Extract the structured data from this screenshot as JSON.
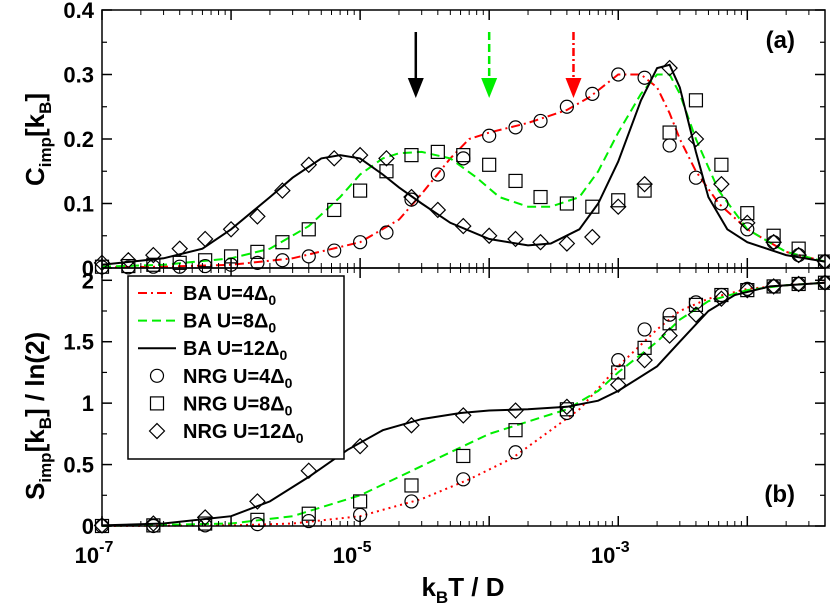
{
  "chart_data": [
    {
      "panel": "(a)",
      "type": "line",
      "xscale": "log",
      "xlim": [
        1e-07,
        0.04
      ],
      "ylim": [
        0,
        0.4
      ],
      "yticks": [
        "0",
        "0.1",
        "0.2",
        "0.3",
        "0.4"
      ],
      "ylabel": {
        "main": "C",
        "sub": "imp",
        "rest": "[k",
        "sub2": "B",
        "end": "]"
      },
      "arrows": [
        {
          "x": 2.7e-05,
          "color": "#000000",
          "style": "solid"
        },
        {
          "x": 0.0001,
          "color": "#00ee00",
          "style": "dashed"
        },
        {
          "x": 0.00045,
          "color": "#ff0000",
          "style": "dashdot"
        }
      ],
      "series": [
        {
          "name": "BA U=4Δ0",
          "kind": "line",
          "color": "#ff0000",
          "dash": "dashdot",
          "x": [
            1e-07,
            3e-07,
            1e-06,
            3e-06,
            1e-05,
            2e-05,
            3e-05,
            5e-05,
            7e-05,
            0.0001,
            0.0002,
            0.0004,
            0.0006,
            0.001,
            0.0015,
            0.002,
            0.0025,
            0.003,
            0.004,
            0.006,
            0.01,
            0.02,
            0.04
          ],
          "y": [
            0.001,
            0.002,
            0.005,
            0.015,
            0.04,
            0.075,
            0.115,
            0.17,
            0.2,
            0.21,
            0.225,
            0.245,
            0.265,
            0.3,
            0.3,
            0.28,
            0.24,
            0.2,
            0.15,
            0.1,
            0.06,
            0.025,
            0.01
          ]
        },
        {
          "name": "BA U=8Δ0",
          "kind": "line",
          "color": "#00ee00",
          "dash": "dashed",
          "x": [
            1e-07,
            3e-07,
            1e-06,
            2e-06,
            4e-06,
            7e-06,
            1e-05,
            1.5e-05,
            2e-05,
            3e-05,
            5e-05,
            8e-05,
            0.00012,
            0.0002,
            0.0003,
            0.0005,
            0.0007,
            0.001,
            0.0015,
            0.002,
            0.0025,
            0.003,
            0.004,
            0.006,
            0.01,
            0.02,
            0.04
          ],
          "y": [
            0.002,
            0.005,
            0.015,
            0.03,
            0.065,
            0.11,
            0.145,
            0.17,
            0.178,
            0.18,
            0.17,
            0.14,
            0.11,
            0.095,
            0.095,
            0.11,
            0.15,
            0.21,
            0.27,
            0.3,
            0.3,
            0.27,
            0.2,
            0.12,
            0.06,
            0.025,
            0.01
          ]
        },
        {
          "name": "BA U=12Δ0",
          "kind": "line",
          "color": "#000000",
          "dash": "solid",
          "x": [
            1e-07,
            3e-07,
            6e-07,
            1e-06,
            2e-06,
            3e-06,
            5e-06,
            7e-06,
            1e-05,
            1.5e-05,
            2e-05,
            3e-05,
            5e-05,
            0.0001,
            0.0002,
            0.0003,
            0.0005,
            0.0007,
            0.001,
            0.0015,
            0.002,
            0.0025,
            0.003,
            0.004,
            0.005,
            0.007,
            0.01,
            0.02,
            0.04
          ],
          "y": [
            0.005,
            0.015,
            0.03,
            0.06,
            0.11,
            0.14,
            0.17,
            0.175,
            0.17,
            0.145,
            0.125,
            0.1,
            0.07,
            0.045,
            0.035,
            0.038,
            0.06,
            0.1,
            0.165,
            0.26,
            0.31,
            0.315,
            0.28,
            0.18,
            0.11,
            0.06,
            0.04,
            0.02,
            0.01
          ]
        },
        {
          "name": "NRG U=4Δ0",
          "kind": "marker",
          "marker": "circle",
          "x": [
            1e-07,
            1.6e-07,
            2.5e-07,
            4e-07,
            6.3e-07,
            1e-06,
            1.6e-06,
            2.5e-06,
            4e-06,
            6.3e-06,
            1e-05,
            1.6e-05,
            2.5e-05,
            4e-05,
            6.3e-05,
            0.0001,
            0.00016,
            0.00025,
            0.0004,
            0.00063,
            0.001,
            0.0016,
            0.0025,
            0.004,
            0.0063,
            0.01,
            0.016,
            0.025,
            0.04
          ],
          "y": [
            0.001,
            0.001,
            0.002,
            0.002,
            0.003,
            0.005,
            0.008,
            0.012,
            0.018,
            0.027,
            0.04,
            0.055,
            0.106,
            0.145,
            0.17,
            0.205,
            0.218,
            0.228,
            0.25,
            0.27,
            0.3,
            0.295,
            0.19,
            0.14,
            0.1,
            0.06,
            0.04,
            0.02,
            0.01
          ]
        },
        {
          "name": "NRG U=8Δ0",
          "kind": "marker",
          "marker": "square",
          "x": [
            1e-07,
            1.6e-07,
            2.5e-07,
            4e-07,
            6.3e-07,
            1e-06,
            1.6e-06,
            2.5e-06,
            4e-06,
            6.3e-06,
            1e-05,
            1.6e-05,
            2.5e-05,
            4e-05,
            6.3e-05,
            0.0001,
            0.00016,
            0.00025,
            0.0004,
            0.00063,
            0.001,
            0.0016,
            0.0025,
            0.004,
            0.0063,
            0.01,
            0.016,
            0.025,
            0.04
          ],
          "y": [
            0.002,
            0.003,
            0.005,
            0.008,
            0.012,
            0.018,
            0.025,
            0.04,
            0.06,
            0.09,
            0.12,
            0.15,
            0.175,
            0.18,
            0.175,
            0.16,
            0.135,
            0.11,
            0.1,
            0.095,
            0.105,
            0.12,
            0.21,
            0.26,
            0.16,
            0.085,
            0.05,
            0.03,
            0.01
          ]
        },
        {
          "name": "NRG U=12Δ0",
          "kind": "marker",
          "marker": "diamond",
          "x": [
            1e-07,
            1.6e-07,
            2.5e-07,
            4e-07,
            6.3e-07,
            1e-06,
            1.6e-06,
            2.5e-06,
            4e-06,
            6.3e-06,
            1e-05,
            1.6e-05,
            2.5e-05,
            4e-05,
            6.3e-05,
            0.0001,
            0.00016,
            0.00025,
            0.0004,
            0.00063,
            0.001,
            0.0016,
            0.0025,
            0.004,
            0.0063,
            0.01,
            0.016,
            0.025,
            0.04
          ],
          "y": [
            0.008,
            0.012,
            0.02,
            0.03,
            0.045,
            0.06,
            0.08,
            0.12,
            0.16,
            0.17,
            0.175,
            0.17,
            0.11,
            0.09,
            0.065,
            0.05,
            0.045,
            0.04,
            0.038,
            0.048,
            0.095,
            0.13,
            0.31,
            0.2,
            0.13,
            0.07,
            0.04,
            0.02,
            0.01
          ]
        }
      ]
    },
    {
      "panel": "(b)",
      "type": "line",
      "xscale": "log",
      "xlim": [
        1e-07,
        0.04
      ],
      "ylim": [
        0,
        2.1
      ],
      "yticks": [
        "0",
        "0.5",
        "1",
        "1.5",
        "2"
      ],
      "xticks": [
        {
          "base": "10",
          "exp": "-7"
        },
        {
          "base": "10",
          "exp": "-5"
        },
        {
          "base": "10",
          "exp": "-3"
        }
      ],
      "xlabel": {
        "a": "k",
        "sub": "B",
        "b": "T / D"
      },
      "ylabel": {
        "main": "S",
        "sub": "imp",
        "rest": "[k",
        "sub2": "B",
        "end": "] / ln(2)"
      },
      "series": [
        {
          "name": "BA U=4Δ0",
          "kind": "line",
          "color": "#ff0000",
          "dash": "dotted",
          "x": [
            1e-07,
            1e-06,
            3e-06,
            1e-05,
            3e-05,
            7e-05,
            0.00015,
            0.0003,
            0.0005,
            0.001,
            0.002,
            0.003,
            0.005,
            0.01,
            0.02,
            0.04
          ],
          "y": [
            0.0,
            0.005,
            0.02,
            0.08,
            0.22,
            0.38,
            0.55,
            0.78,
            0.95,
            1.3,
            1.6,
            1.75,
            1.85,
            1.93,
            1.96,
            1.98
          ]
        },
        {
          "name": "BA U=8Δ0",
          "kind": "line",
          "color": "#00ee00",
          "dash": "dashed",
          "x": [
            1e-07,
            1e-06,
            3e-06,
            1e-05,
            2e-05,
            5e-05,
            0.0001,
            0.0002,
            0.0004,
            0.0007,
            0.001,
            0.002,
            0.003,
            0.005,
            0.01,
            0.02,
            0.04
          ],
          "y": [
            0.0,
            0.02,
            0.08,
            0.25,
            0.4,
            0.6,
            0.75,
            0.85,
            0.95,
            1.1,
            1.25,
            1.5,
            1.68,
            1.83,
            1.92,
            1.96,
            1.98
          ]
        },
        {
          "name": "BA U=12Δ0",
          "kind": "line",
          "color": "#000000",
          "dash": "solid",
          "x": [
            1e-07,
            3e-07,
            1e-06,
            2e-06,
            4e-06,
            8e-06,
            1.5e-05,
            3e-05,
            6e-05,
            0.0001,
            0.0002,
            0.0004,
            0.0007,
            0.001,
            0.002,
            0.003,
            0.005,
            0.008,
            0.015,
            0.04
          ],
          "y": [
            0.005,
            0.02,
            0.08,
            0.2,
            0.4,
            0.62,
            0.78,
            0.87,
            0.92,
            0.94,
            0.95,
            0.97,
            1.02,
            1.1,
            1.3,
            1.5,
            1.75,
            1.88,
            1.95,
            1.98
          ]
        },
        {
          "name": "NRG U=4Δ0",
          "kind": "marker",
          "marker": "circle",
          "x": [
            1e-07,
            2.5e-07,
            6.3e-07,
            1.6e-06,
            4e-06,
            1e-05,
            2.5e-05,
            6.3e-05,
            0.00016,
            0.0004,
            0.001,
            0.0016,
            0.0025,
            0.004,
            0.0063,
            0.01,
            0.016,
            0.025,
            0.04
          ],
          "y": [
            0.0,
            0.0,
            0.005,
            0.015,
            0.04,
            0.09,
            0.2,
            0.38,
            0.6,
            0.92,
            1.35,
            1.6,
            1.72,
            1.82,
            1.88,
            1.93,
            1.95,
            1.97,
            1.98
          ]
        },
        {
          "name": "NRG U=8Δ0",
          "kind": "marker",
          "marker": "square",
          "x": [
            1e-07,
            2.5e-07,
            6.3e-07,
            1.6e-06,
            4e-06,
            1e-05,
            2.5e-05,
            6.3e-05,
            0.00016,
            0.0004,
            0.001,
            0.0016,
            0.0025,
            0.004,
            0.0063,
            0.01,
            0.016,
            0.025,
            0.04
          ],
          "y": [
            0.0,
            0.005,
            0.02,
            0.05,
            0.1,
            0.2,
            0.33,
            0.57,
            0.78,
            0.95,
            1.25,
            1.45,
            1.65,
            1.8,
            1.88,
            1.92,
            1.95,
            1.97,
            1.98
          ]
        },
        {
          "name": "NRG U=12Δ0",
          "kind": "marker",
          "marker": "diamond",
          "x": [
            1e-07,
            2.5e-07,
            6.3e-07,
            1.6e-06,
            4e-06,
            1e-05,
            2.5e-05,
            6.3e-05,
            0.00016,
            0.0004,
            0.001,
            0.0016,
            0.0025,
            0.004,
            0.0063,
            0.01,
            0.016,
            0.025,
            0.04
          ],
          "y": [
            0.005,
            0.02,
            0.07,
            0.2,
            0.45,
            0.65,
            0.82,
            0.9,
            0.94,
            0.97,
            1.15,
            1.35,
            1.55,
            1.72,
            1.85,
            1.92,
            1.95,
            1.97,
            1.98
          ]
        }
      ]
    }
  ],
  "legend": {
    "placement": "left-middle",
    "entries": [
      {
        "label": "BA U=4",
        "delta": "Δ",
        "sub": "0",
        "kind": "line",
        "color": "#ff0000",
        "dash": "dashdot"
      },
      {
        "label": "BA U=8",
        "delta": "Δ",
        "sub": "0",
        "kind": "line",
        "color": "#00ee00",
        "dash": "dashed"
      },
      {
        "label": "BA U=12",
        "delta": "Δ",
        "sub": "0",
        "kind": "line",
        "color": "#000000",
        "dash": "solid"
      },
      {
        "label": "NRG U=4",
        "delta": "Δ",
        "sub": "0",
        "kind": "marker",
        "marker": "circle"
      },
      {
        "label": "NRG U=8",
        "delta": "Δ",
        "sub": "0",
        "kind": "marker",
        "marker": "square"
      },
      {
        "label": "NRG U=12",
        "delta": "Δ",
        "sub": "0",
        "kind": "marker",
        "marker": "diamond"
      }
    ]
  }
}
